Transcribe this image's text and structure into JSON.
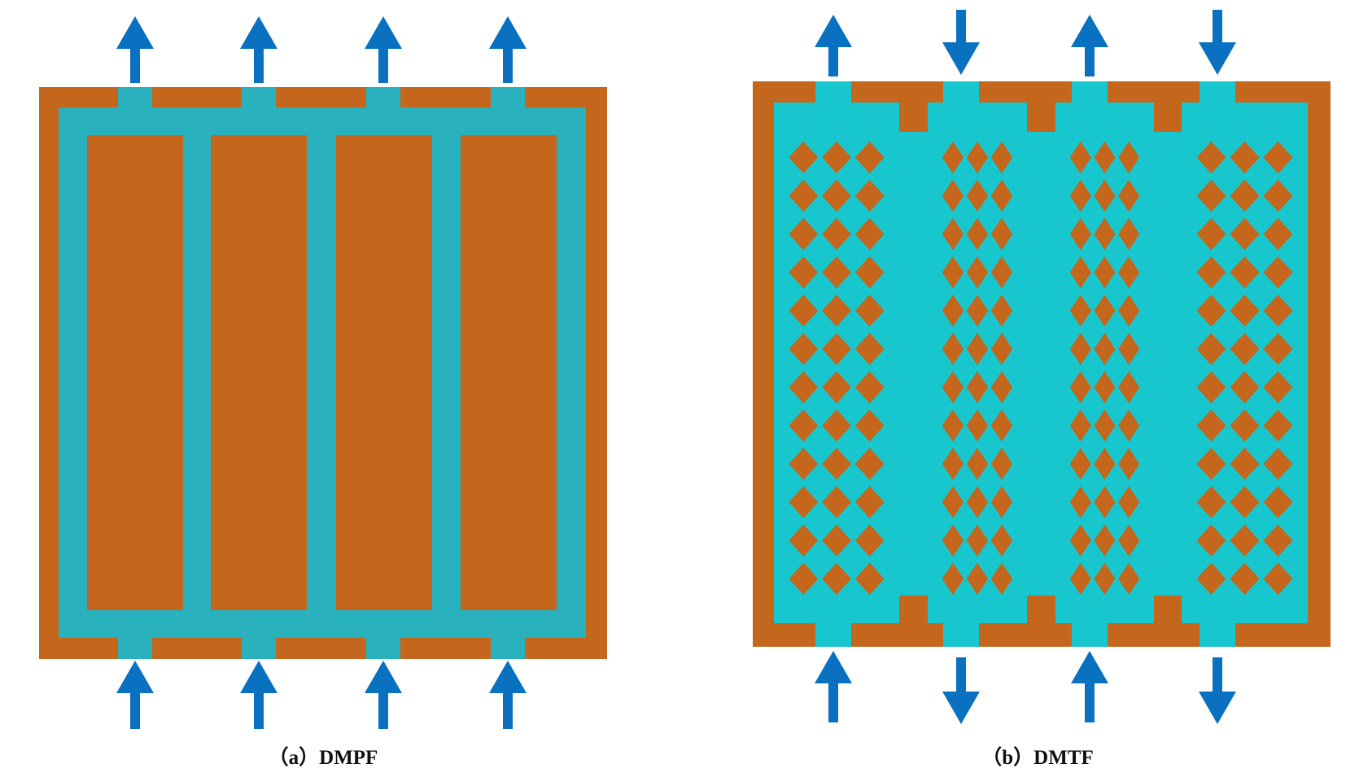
{
  "colors": {
    "plate": "#c4661c",
    "channel_a": "#29b1bd",
    "channel_b": "#18c7cd",
    "arrow": "#0a70c0"
  },
  "panels": [
    {
      "id": "a",
      "caption": "（a）DMPF",
      "channel_count": 4,
      "flow": [
        "up",
        "up",
        "up",
        "up"
      ]
    },
    {
      "id": "b",
      "caption": "（b）DMTF",
      "channel_count": 4,
      "flow": [
        "up",
        "down",
        "up",
        "down"
      ]
    }
  ]
}
